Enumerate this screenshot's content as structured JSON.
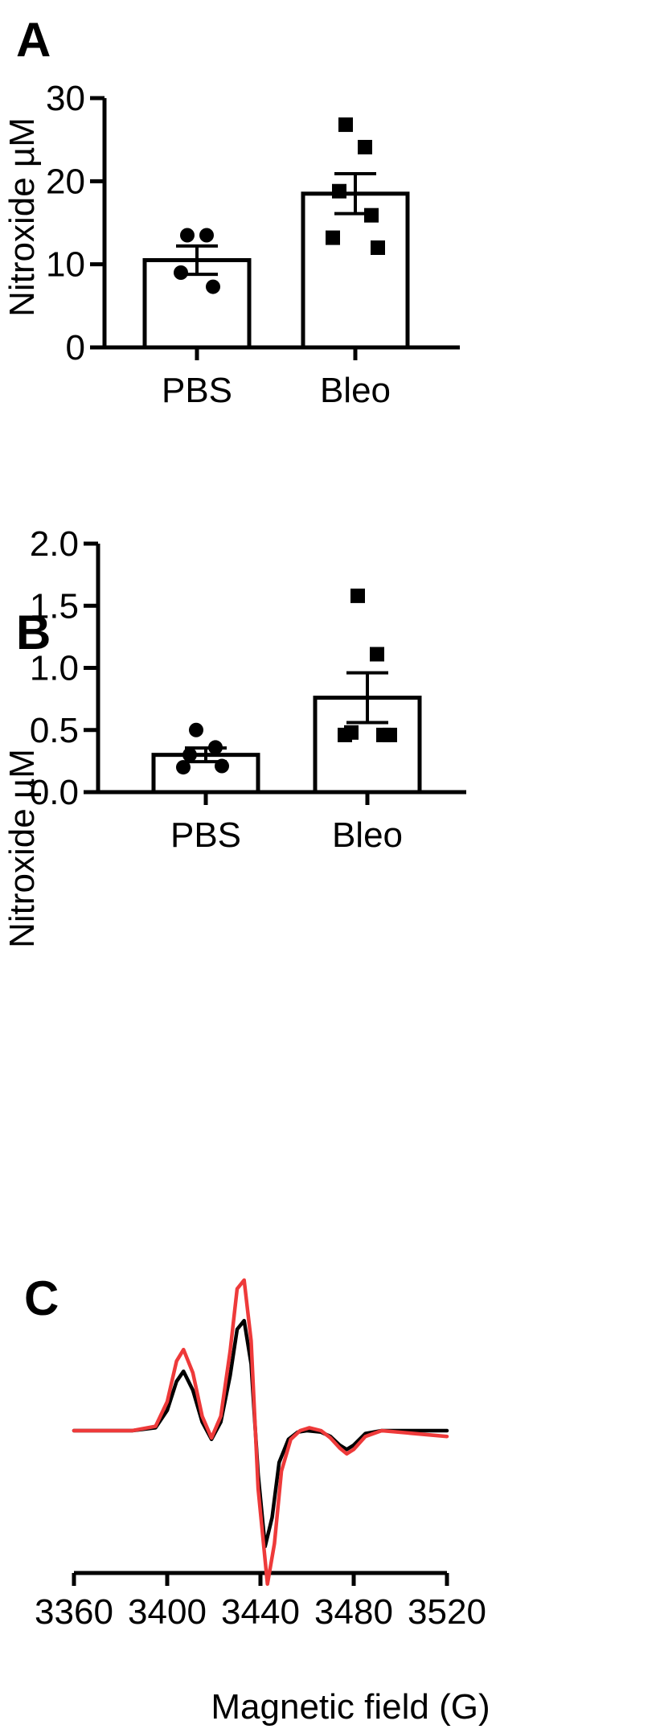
{
  "chart_data": [
    {
      "panel": "A",
      "type": "bar",
      "ylabel": "Nitroxide µM",
      "ylim": [
        0,
        30
      ],
      "yticks": [
        "0",
        "10",
        "20",
        "30"
      ],
      "categories": [
        "PBS",
        "Bleo"
      ],
      "values": [
        10.5,
        18.5
      ],
      "error": [
        1.7,
        2.4
      ],
      "points": [
        {
          "category": "PBS",
          "marker": "circle",
          "y": [
            13.5,
            13.5,
            9.0,
            7.3
          ]
        },
        {
          "category": "Bleo",
          "marker": "square",
          "y": [
            26.8,
            24.1,
            18.8,
            15.9,
            13.2,
            12.0
          ]
        }
      ]
    },
    {
      "panel": "B",
      "type": "bar",
      "ylabel": "Nitroxide µM",
      "ylim": [
        0,
        2.0
      ],
      "yticks": [
        "0.0",
        "0.5",
        "1.0",
        "1.5",
        "2.0"
      ],
      "categories": [
        "PBS",
        "Bleo"
      ],
      "values": [
        0.3,
        0.76
      ],
      "error": [
        0.055,
        0.2
      ],
      "points": [
        {
          "category": "PBS",
          "marker": "circle",
          "y": [
            0.5,
            0.36,
            0.3,
            0.21,
            0.2
          ]
        },
        {
          "category": "Bleo",
          "marker": "square",
          "y": [
            1.58,
            1.11,
            0.48,
            0.46,
            0.46,
            0.46
          ]
        }
      ]
    },
    {
      "panel": "C",
      "type": "line",
      "xlabel": "Magnetic field (G)",
      "xlim": [
        3360,
        3520
      ],
      "xticks": [
        "3360",
        "3400",
        "3440",
        "3480",
        "3520"
      ],
      "series": [
        {
          "color": "#000000",
          "x": [
            3360,
            3385,
            3395,
            3400,
            3404,
            3407,
            3411,
            3415,
            3419,
            3423,
            3427,
            3430,
            3433,
            3436,
            3439,
            3442,
            3445,
            3448,
            3452,
            3456,
            3460,
            3466,
            3470,
            3474,
            3477,
            3480,
            3485,
            3492,
            3520
          ],
          "y": [
            0.0,
            0.0,
            0.02,
            0.14,
            0.34,
            0.41,
            0.28,
            0.06,
            -0.06,
            0.06,
            0.38,
            0.7,
            0.76,
            0.46,
            -0.3,
            -0.8,
            -0.6,
            -0.22,
            -0.06,
            -0.01,
            0.0,
            -0.01,
            -0.04,
            -0.1,
            -0.13,
            -0.1,
            -0.02,
            0.0,
            0.0
          ]
        },
        {
          "color": "#ee3a3a",
          "x": [
            3360,
            3385,
            3395,
            3400,
            3404,
            3407,
            3411,
            3415,
            3419,
            3423,
            3427,
            3430,
            3433,
            3436,
            3439,
            3443,
            3446,
            3449,
            3453,
            3457,
            3461,
            3466,
            3470,
            3474,
            3477,
            3480,
            3485,
            3492,
            3520
          ],
          "y": [
            0.0,
            0.0,
            0.03,
            0.2,
            0.48,
            0.56,
            0.4,
            0.1,
            -0.05,
            0.1,
            0.55,
            0.98,
            1.04,
            0.62,
            -0.4,
            -1.06,
            -0.78,
            -0.28,
            -0.06,
            0.0,
            0.02,
            0.0,
            -0.05,
            -0.12,
            -0.16,
            -0.13,
            -0.04,
            0.0,
            -0.04
          ]
        }
      ]
    }
  ]
}
